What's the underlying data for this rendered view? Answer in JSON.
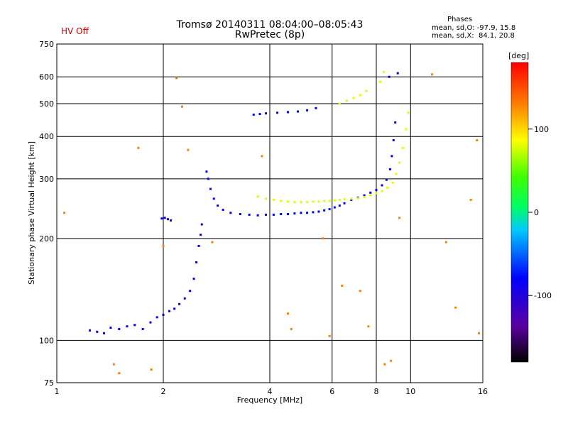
{
  "header": {
    "title": "Tromsø 20140311 08:04:00–08:05:43",
    "subtitle": "RwPretec (8p)",
    "hv_status": "HV Off",
    "phases_title": "Phases",
    "phase_o": "mean, sd,O: -97.9, 15.8",
    "phase_x": "mean, sd,X:  84.1, 20.8"
  },
  "colors": {
    "hv_status": "#cc0000",
    "grid": "#000000",
    "background": "#ffffff"
  },
  "colorbar": {
    "label": "[deg]",
    "ticks": [
      "100",
      "0",
      "-100"
    ],
    "tick_values": [
      100,
      0,
      -100
    ],
    "range": [
      -180,
      180
    ]
  },
  "chart_data": {
    "type": "scatter",
    "title": "Tromsø 20140311 08:04:00–08:05:43",
    "subtitle": "RwPretec (8p)",
    "xlabel": "Frequency [MHz]",
    "ylabel": "Stationary phase Virtual Height [km]",
    "xscale": "log",
    "yscale": "log",
    "xlim": [
      1,
      16
    ],
    "ylim": [
      75,
      750
    ],
    "grid": true,
    "x_tick_values": [
      1,
      2,
      4,
      6,
      8,
      10,
      16
    ],
    "x_ticks": [
      "1",
      "2",
      "4",
      "6",
      "8",
      "10",
      "16"
    ],
    "y_tick_values": [
      75,
      100,
      200,
      300,
      400,
      500,
      600,
      750
    ],
    "y_ticks": [
      "75",
      "100",
      "200",
      "300",
      "400",
      "500",
      "600",
      "750"
    ],
    "series": [
      {
        "name": "O-mode trace (blue)",
        "phase": -100,
        "x": [
          1.24,
          1.3,
          1.36,
          1.42,
          1.5,
          1.58,
          1.66,
          1.75,
          1.84,
          1.92,
          2.0,
          2.08,
          2.15,
          2.22,
          2.3,
          2.38,
          2.44,
          2.48,
          2.52,
          2.55,
          2.57,
          1.98,
          2.02,
          2.06,
          2.1,
          2.65,
          2.68,
          2.72,
          2.78,
          2.85,
          2.95,
          3.1,
          3.3,
          3.5,
          3.7,
          3.9,
          4.1,
          4.3,
          4.5,
          4.7,
          4.9,
          5.1,
          5.3,
          5.5,
          5.7,
          5.9,
          6.1,
          6.3,
          6.5,
          6.8,
          7.1,
          7.4,
          7.7,
          8.0,
          8.3,
          8.55,
          8.75,
          8.85,
          8.95,
          9.05,
          3.6,
          3.75,
          3.9,
          4.2,
          4.5,
          4.8,
          5.1,
          5.4,
          8.7,
          9.2
        ],
        "y": [
          107,
          106,
          105,
          109,
          108,
          110,
          111,
          108,
          113,
          117,
          119,
          122,
          124,
          128,
          133,
          140,
          152,
          170,
          190,
          205,
          220,
          229,
          230,
          228,
          226,
          315,
          300,
          280,
          262,
          250,
          243,
          238,
          236,
          235,
          234,
          235,
          235,
          236,
          236,
          237,
          238,
          238,
          239,
          240,
          242,
          244,
          247,
          250,
          254,
          260,
          264,
          268,
          273,
          278,
          287,
          298,
          320,
          350,
          390,
          440,
          464,
          466,
          468,
          470,
          472,
          474,
          478,
          485,
          600,
          615
        ]
      },
      {
        "name": "X-mode trace (yellow-green)",
        "phase": 90,
        "x": [
          3.7,
          3.9,
          4.1,
          4.3,
          4.5,
          4.7,
          4.9,
          5.1,
          5.3,
          5.5,
          5.7,
          5.9,
          6.1,
          6.3,
          6.5,
          6.8,
          7.1,
          7.4,
          7.7,
          8.0,
          8.3,
          8.6,
          8.9,
          9.1,
          9.3,
          9.5,
          9.7,
          9.85,
          6.3,
          6.6,
          6.9,
          7.2,
          7.5,
          8.2,
          8.4
        ],
        "y": [
          266,
          262,
          260,
          258,
          257,
          256,
          256,
          256,
          257,
          257,
          258,
          258,
          259,
          260,
          261,
          262,
          263,
          265,
          268,
          272,
          276,
          282,
          292,
          310,
          335,
          370,
          420,
          470,
          500,
          510,
          520,
          530,
          545,
          580,
          620
        ]
      },
      {
        "name": "Scattered echoes",
        "phase": 140,
        "x": [
          1.05,
          1.7,
          2.18,
          2.26,
          2.75,
          3.8,
          4.5,
          4.6,
          5.65,
          5.9,
          6.4,
          7.6,
          8.8,
          9.3,
          11.5,
          12.6,
          13.4,
          14.8,
          15.4,
          15.6,
          1.45,
          1.5,
          1.85,
          2.0,
          2.35,
          7.2,
          8.45
        ],
        "y": [
          238,
          370,
          595,
          490,
          195,
          350,
          120,
          108,
          200,
          103,
          145,
          110,
          87,
          230,
          610,
          195,
          125,
          260,
          390,
          105,
          85,
          80,
          82,
          190,
          365,
          140,
          85
        ]
      }
    ]
  }
}
